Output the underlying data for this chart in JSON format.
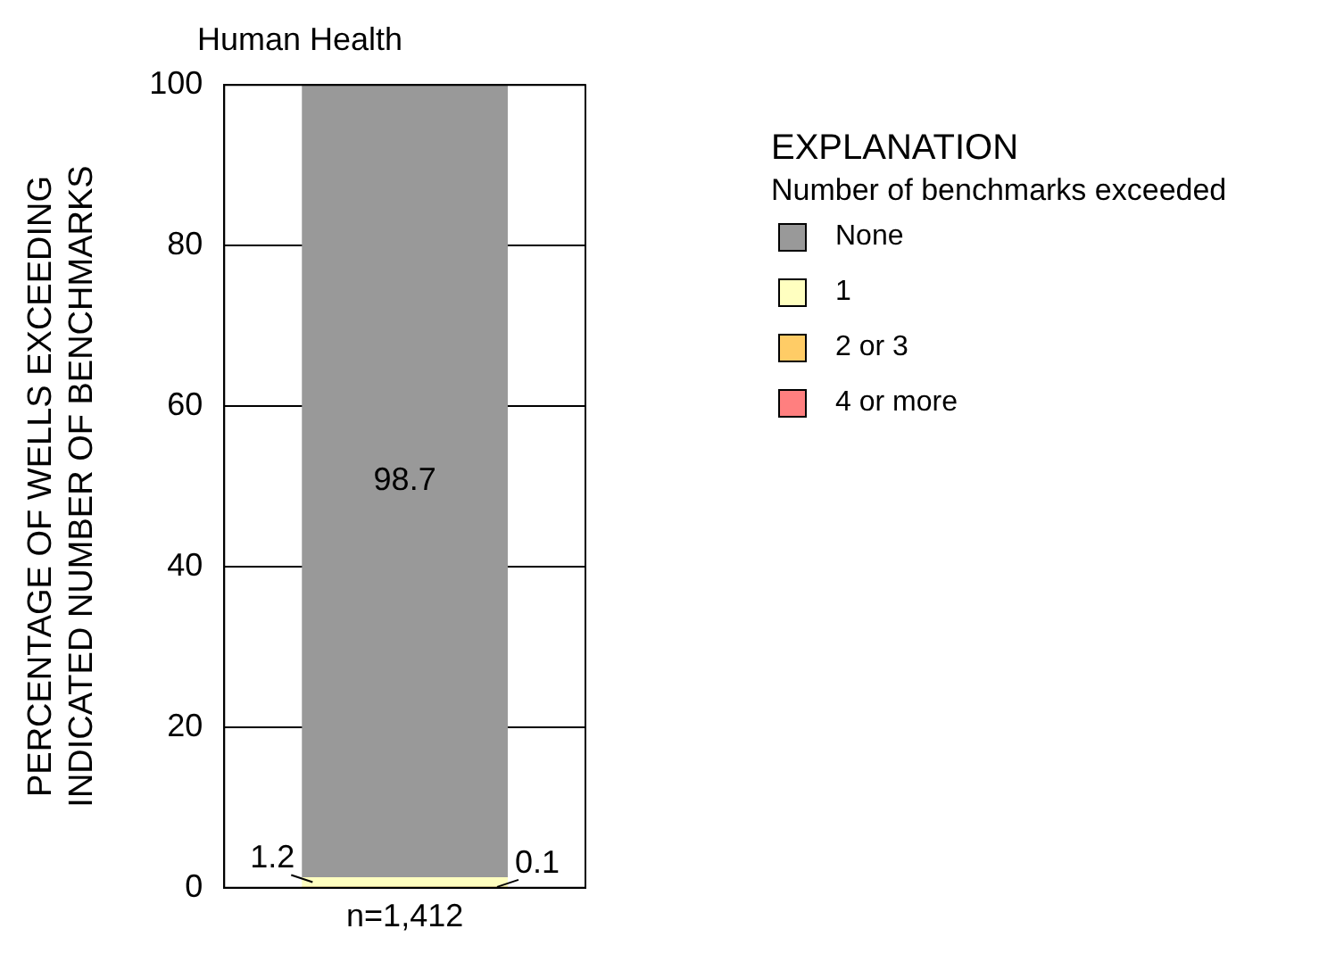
{
  "chart_data": {
    "type": "bar",
    "stacked": true,
    "title": "Human Health",
    "ylabel": "PERCENTAGE OF WELLS EXCEEDING\nINDICATED NUMBER OF BENCHMARKS",
    "categories": [
      "n=1,412"
    ],
    "series": [
      {
        "name": "4 or more",
        "color": "#ff7f7f",
        "values": [
          null
        ],
        "value_labels": [
          null
        ]
      },
      {
        "name": "2 or 3",
        "color": "#ffcc66",
        "values": [
          0.1
        ],
        "value_labels": [
          "0.1"
        ]
      },
      {
        "name": "1",
        "color": "#ffffc0",
        "values": [
          1.2
        ],
        "value_labels": [
          "1.2"
        ]
      },
      {
        "name": "None",
        "color": "#999999",
        "values": [
          98.7
        ],
        "value_labels": [
          "98.7"
        ]
      }
    ],
    "ylim": [
      0,
      100
    ],
    "yticks": [
      0,
      20,
      40,
      60,
      80,
      100
    ],
    "grid": "y",
    "legend": "top right",
    "legend_title": "Number of benchmarks exceeded",
    "annotations": [
      "EXPLANATION"
    ]
  }
}
